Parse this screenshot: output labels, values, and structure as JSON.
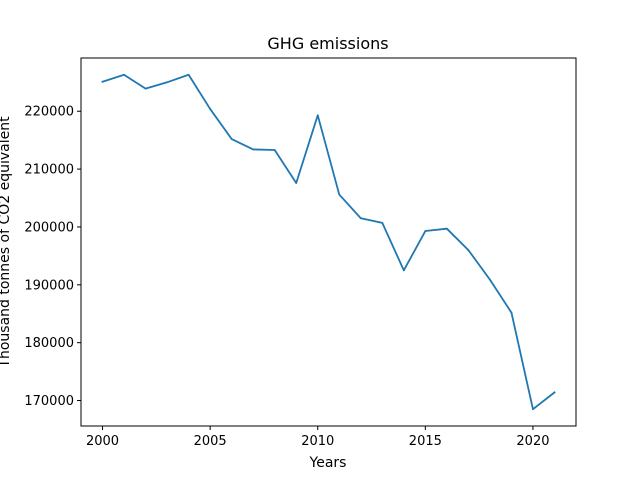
{
  "chart_data": {
    "type": "line",
    "title": "GHG emissions",
    "xlabel": "Years",
    "ylabel": "Thousand tonnes of CO2 equivalent",
    "x": [
      2000,
      2001,
      2002,
      2003,
      2004,
      2005,
      2006,
      2007,
      2008,
      2009,
      2010,
      2011,
      2012,
      2013,
      2014,
      2015,
      2016,
      2017,
      2018,
      2019,
      2020,
      2021
    ],
    "series": [
      {
        "values": [
          225100,
          226300,
          223900,
          225000,
          226300,
          220400,
          215200,
          213400,
          213300,
          207600,
          219300,
          205600,
          201500,
          200700,
          192500,
          199300,
          199700,
          196000,
          190900,
          185200,
          168500,
          171400
        ],
        "color": "#1f77b4"
      }
    ],
    "xticks": [
      2000,
      2005,
      2010,
      2015,
      2020
    ],
    "yticks": [
      170000,
      180000,
      190000,
      200000,
      210000,
      220000
    ],
    "xlim": [
      1999,
      2022
    ],
    "ylim": [
      165600,
      229200
    ],
    "grid": false,
    "legend": false
  }
}
